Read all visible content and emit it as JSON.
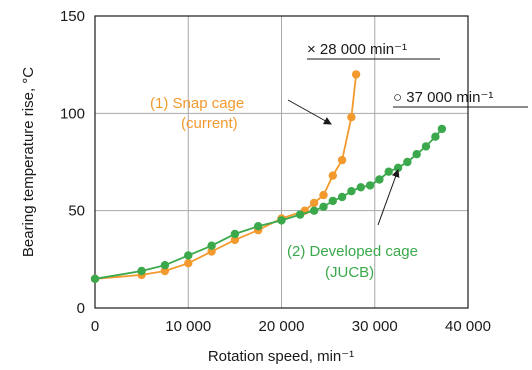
{
  "chart_data": {
    "type": "line",
    "xlabel": "Rotation speed, min⁻¹",
    "ylabel": "Bearing temperature rise, °C",
    "xlim": [
      0,
      40000
    ],
    "ylim": [
      0,
      150
    ],
    "x_ticks": [
      0,
      10000,
      20000,
      30000,
      40000
    ],
    "x_tick_labels": [
      "0",
      "10 000",
      "20 000",
      "30 000",
      "40 000"
    ],
    "y_ticks": [
      0,
      50,
      100,
      150
    ],
    "y_tick_labels": [
      "0",
      "50",
      "100",
      "150"
    ],
    "grid": true,
    "series": [
      {
        "name": "(1) Snap cage (current)",
        "label_lines": [
          "(1) Snap cage",
          "(current)"
        ],
        "color": "#f39a2e",
        "points": [
          [
            0,
            15
          ],
          [
            5000,
            17
          ],
          [
            7500,
            19
          ],
          [
            10000,
            23
          ],
          [
            12500,
            29
          ],
          [
            15000,
            35
          ],
          [
            17500,
            40
          ],
          [
            20000,
            46
          ],
          [
            22500,
            50
          ],
          [
            23500,
            54
          ],
          [
            24500,
            58
          ],
          [
            25500,
            68
          ],
          [
            26500,
            76
          ],
          [
            27500,
            98
          ],
          [
            28000,
            120
          ]
        ]
      },
      {
        "name": "(2) Developed cage (JUCB)",
        "label_lines": [
          "(2) Developed cage",
          "(JUCB)"
        ],
        "color": "#3aa84b",
        "points": [
          [
            0,
            15
          ],
          [
            5000,
            19
          ],
          [
            7500,
            22
          ],
          [
            10000,
            27
          ],
          [
            12500,
            32
          ],
          [
            15000,
            38
          ],
          [
            17500,
            42
          ],
          [
            20000,
            45
          ],
          [
            22000,
            48
          ],
          [
            23500,
            50
          ],
          [
            24500,
            52
          ],
          [
            25500,
            55
          ],
          [
            26500,
            57
          ],
          [
            27500,
            60
          ],
          [
            28500,
            62
          ],
          [
            29500,
            63
          ],
          [
            30500,
            66
          ],
          [
            31500,
            70
          ],
          [
            32500,
            72
          ],
          [
            33500,
            75
          ],
          [
            34500,
            79
          ],
          [
            35500,
            83
          ],
          [
            36500,
            88
          ],
          [
            37200,
            92
          ]
        ]
      }
    ],
    "annotations": {
      "max_snap": "× 28 000 min⁻¹",
      "max_developed": "○ 37 000 min⁻¹"
    }
  }
}
